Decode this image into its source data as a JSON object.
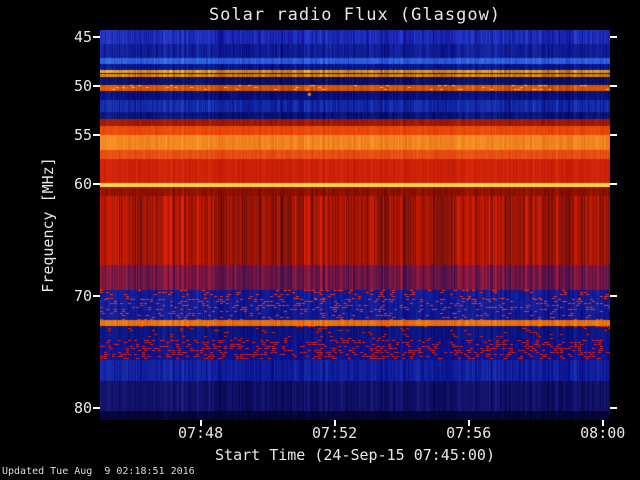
{
  "chart_data": {
    "type": "heatmap",
    "subtype": "solar-radio-spectrogram",
    "title": "Solar radio Flux (Glasgow)",
    "xlabel": "Start Time (24-Sep-15 07:45:00)",
    "ylabel": "Frequency [MHz]",
    "updated_text": "Updated Tue Aug  9 02:18:51 2016",
    "legend": "none",
    "grid": false,
    "time_range_sec": [
      0,
      913
    ],
    "x_ticks": [
      {
        "label": "07:48",
        "sec": 180
      },
      {
        "label": "07:52",
        "sec": 420
      },
      {
        "label": "07:56",
        "sec": 660
      },
      {
        "label": "08:00",
        "sec": 900
      }
    ],
    "y_ticks": [
      {
        "label": "45",
        "f": 45
      },
      {
        "label": "50",
        "f": 50
      },
      {
        "label": "55",
        "f": 55
      },
      {
        "label": "60",
        "f": 60
      },
      {
        "label": "70",
        "f": 70
      },
      {
        "label": "80",
        "f": 80
      }
    ],
    "freq_range_mhz": [
      44.28,
      81.07
    ],
    "freq_scale": [
      {
        "f": 44.28,
        "frac": 0
      },
      {
        "f": 60.0,
        "frac": 0.3949
      },
      {
        "f": 81.07,
        "frac": 1.0
      }
    ],
    "bands": [
      {
        "f0": 44.28,
        "f1": 45.7,
        "c1": "#000080",
        "c2": "#4466ff",
        "bias": 0.38,
        "amp": 0.55
      },
      {
        "f0": 45.7,
        "f1": 47.1,
        "c1": "#000066",
        "c2": "#3355ee",
        "bias": 0.32,
        "amp": 0.5
      },
      {
        "f0": 47.1,
        "f1": 47.8,
        "c1": "#0a2bbb",
        "c2": "#5599ff",
        "bias": 0.42,
        "amp": 0.5
      },
      {
        "f0": 47.8,
        "f1": 48.35,
        "c1": "#000066",
        "c2": "#2244dd",
        "bias": 0.28,
        "amp": 0.45
      },
      {
        "f0": 48.35,
        "f1": 48.65,
        "c1": "#883300",
        "c2": "#ffcc22",
        "bias": 0.6,
        "amp": 0.85
      },
      {
        "f0": 48.65,
        "f1": 48.82,
        "c1": "#000044",
        "c2": "#223399",
        "bias": 0.28,
        "amp": 0.4
      },
      {
        "f0": 48.82,
        "f1": 49.1,
        "c1": "#992600",
        "c2": "#ffaa11",
        "bias": 0.58,
        "amp": 0.85
      },
      {
        "f0": 49.1,
        "f1": 49.85,
        "c1": "#000044",
        "c2": "#2233aa",
        "bias": 0.3,
        "amp": 0.5
      },
      {
        "f0": 49.85,
        "f1": 50.5,
        "c1": "#992200",
        "c2": "#ff7700",
        "bias": 0.55,
        "amp": 0.75,
        "speckle": {
          "color": "#ffbb33",
          "density": 0.06
        }
      },
      {
        "f0": 50.5,
        "f1": 51.4,
        "c1": "#000055",
        "c2": "#1b37cc",
        "bias": 0.28,
        "amp": 0.5
      },
      {
        "f0": 51.4,
        "f1": 52.6,
        "c1": "#000077",
        "c2": "#3366ee",
        "bias": 0.36,
        "amp": 0.55
      },
      {
        "f0": 52.6,
        "f1": 53.4,
        "c1": "#000055",
        "c2": "#2244cc",
        "bias": 0.27,
        "amp": 0.5
      },
      {
        "f0": 53.4,
        "f1": 54.1,
        "c1": "#550000",
        "c2": "#dd3300",
        "bias": 0.5,
        "amp": 0.4
      },
      {
        "f0": 54.1,
        "f1": 55.0,
        "c1": "#cc2200",
        "c2": "#ff6611",
        "bias": 0.55,
        "amp": 0.4
      },
      {
        "f0": 55.0,
        "f1": 56.5,
        "c1": "#dd4400",
        "c2": "#ffaa33",
        "bias": 0.6,
        "amp": 0.45
      },
      {
        "f0": 56.5,
        "f1": 57.4,
        "c1": "#cc2200",
        "c2": "#ff7722",
        "bias": 0.5,
        "amp": 0.4
      },
      {
        "f0": 57.4,
        "f1": 59.9,
        "c1": "#aa0f00",
        "c2": "#ee3311",
        "bias": 0.5,
        "amp": 0.5
      },
      {
        "f0": 59.9,
        "f1": 60.3,
        "c1": "#ffbb00",
        "c2": "#ffee77",
        "bias": 0.55,
        "amp": 0.3,
        "jitter": 0.1
      },
      {
        "f0": 60.3,
        "f1": 61.1,
        "c1": "#550000",
        "c2": "#cc2200",
        "bias": 0.45,
        "amp": 0.5
      },
      {
        "f0": 61.1,
        "f1": 67.2,
        "c1": "#38060f",
        "c2": "#ee2200",
        "bias": 0.52,
        "amp": 1.0
      },
      {
        "f0": 67.2,
        "f1": 69.5,
        "c1": "#1b0b55",
        "c2": "#cc2233",
        "bias": 0.42,
        "amp": 0.9
      },
      {
        "f0": 69.5,
        "f1": 70.3,
        "c1": "#000077",
        "c2": "#2b48cc",
        "bias": 0.34,
        "amp": 0.5,
        "speckle": {
          "color": "#ff3300",
          "density": 0.1
        }
      },
      {
        "f0": 70.3,
        "f1": 71.3,
        "c1": "#000077",
        "c2": "#2b48cc",
        "bias": 0.34,
        "amp": 0.5,
        "speckle": {
          "color": "#ff3300",
          "density": 0.16
        }
      },
      {
        "f0": 71.3,
        "f1": 72.1,
        "c1": "#000077",
        "c2": "#2b48cc",
        "bias": 0.33,
        "amp": 0.5,
        "speckle": {
          "color": "#ff3300",
          "density": 0.1
        }
      },
      {
        "f0": 72.1,
        "f1": 72.65,
        "c1": "#cc3300",
        "c2": "#ff9911",
        "bias": 0.58,
        "amp": 0.55
      },
      {
        "f0": 72.65,
        "f1": 73.9,
        "c1": "#000066",
        "c2": "#2440bb",
        "bias": 0.3,
        "amp": 0.5,
        "speckle": {
          "color": "#dd2200",
          "density": 0.05
        }
      },
      {
        "f0": 73.9,
        "f1": 75.7,
        "c1": "#000077",
        "c2": "#2233bb",
        "bias": 0.33,
        "amp": 0.5,
        "speckle": {
          "color": "#ee2200",
          "density": 0.22
        }
      },
      {
        "f0": 75.7,
        "f1": 77.6,
        "c1": "#000077",
        "c2": "#3055dd",
        "bias": 0.33,
        "amp": 0.5
      },
      {
        "f0": 77.6,
        "f1": 80.3,
        "c1": "#000044",
        "c2": "#3333aa",
        "bias": 0.3,
        "amp": 0.55
      },
      {
        "f0": 80.3,
        "f1": 81.07,
        "c1": "#000022",
        "c2": "#111166",
        "bias": 0.3,
        "amp": 0.5
      }
    ],
    "point_events": [
      {
        "time_sec": 374,
        "f": 50.8,
        "color": "#ff7711"
      }
    ],
    "colors": {
      "background": "#000000",
      "text": "#e8e8e8",
      "tick": "#ffffff"
    }
  }
}
